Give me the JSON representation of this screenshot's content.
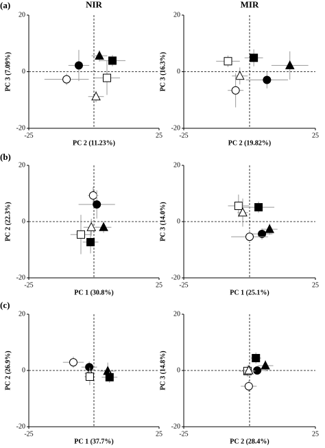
{
  "column_titles": [
    "NIR",
    "MIR"
  ],
  "panel_labels": [
    "(a)",
    "(b)",
    "(c)"
  ],
  "chart_data": [
    {
      "type": "scatter",
      "xlabel": "PC 2 (11.23%)",
      "ylabel": "PC 3 (7.09%)",
      "xlim": [
        -25,
        25
      ],
      "ylim": [
        -20,
        20
      ],
      "xticks": [
        -25,
        25
      ],
      "yticks": [
        -20,
        0,
        20
      ],
      "series": [
        {
          "marker": "circle",
          "filled": true,
          "x": [
            -5.8
          ],
          "values": [
            2.2
          ],
          "xerr": [
            4
          ],
          "yerr": [
            5.5
          ]
        },
        {
          "marker": "triangle",
          "filled": true,
          "x": [
            2.1
          ],
          "values": [
            5.6
          ],
          "xerr": [
            3
          ],
          "yerr": [
            2
          ]
        },
        {
          "marker": "square",
          "filled": true,
          "x": [
            7.1
          ],
          "values": [
            3.9
          ],
          "xerr": [
            5
          ],
          "yerr": [
            2
          ]
        },
        {
          "marker": "circle",
          "filled": false,
          "x": [
            -10.5
          ],
          "values": [
            -2.7
          ],
          "xerr": [
            8.5
          ],
          "yerr": [
            2
          ]
        },
        {
          "marker": "square",
          "filled": false,
          "x": [
            5
          ],
          "values": [
            -2.2
          ],
          "xerr": [
            5
          ],
          "yerr": [
            6
          ]
        },
        {
          "marker": "triangle",
          "filled": false,
          "x": [
            0.8
          ],
          "values": [
            -8.8
          ],
          "xerr": [
            3
          ],
          "yerr": [
            2
          ]
        }
      ]
    },
    {
      "type": "scatter",
      "xlabel": "PC 2 (19.82%)",
      "ylabel": "PC 3 (16.3%)",
      "xlim": [
        -25,
        25
      ],
      "ylim": [
        -20,
        20
      ],
      "xticks": [
        -25,
        25
      ],
      "yticks": [
        -20,
        0,
        20
      ],
      "series": [
        {
          "marker": "square",
          "filled": false,
          "x": [
            -8.2
          ],
          "values": [
            3.7
          ],
          "xerr": [
            4.5
          ],
          "yerr": [
            2
          ]
        },
        {
          "marker": "square",
          "filled": true,
          "x": [
            1.6
          ],
          "values": [
            4.9
          ],
          "xerr": [
            3.5
          ],
          "yerr": [
            3
          ]
        },
        {
          "marker": "triangle",
          "filled": true,
          "x": [
            15.3
          ],
          "values": [
            2.2
          ],
          "xerr": [
            7
          ],
          "yerr": [
            5
          ]
        },
        {
          "marker": "triangle",
          "filled": false,
          "x": [
            -3.7
          ],
          "values": [
            -1.5
          ],
          "xerr": [
            3
          ],
          "yerr": [
            3
          ]
        },
        {
          "marker": "circle",
          "filled": true,
          "x": [
            6.6
          ],
          "values": [
            -2.9
          ],
          "xerr": [
            8
          ],
          "yerr": [
            3
          ]
        },
        {
          "marker": "circle",
          "filled": false,
          "x": [
            -5.3
          ],
          "values": [
            -6.6
          ],
          "xerr": [
            3
          ],
          "yerr": [
            6
          ]
        }
      ]
    },
    {
      "type": "scatter",
      "xlabel": "PC 1 (30.8%)",
      "ylabel": "PC 2 (22.3%)",
      "xlim": [
        -25,
        25
      ],
      "ylim": [
        -20,
        20
      ],
      "xticks": [
        -25,
        25
      ],
      "yticks": [
        -20,
        0,
        20
      ],
      "series": [
        {
          "marker": "circle",
          "filled": false,
          "x": [
            -0.3
          ],
          "values": [
            9.3
          ],
          "xerr": [
            2
          ],
          "yerr": [
            3
          ]
        },
        {
          "marker": "circle",
          "filled": true,
          "x": [
            1.1
          ],
          "values": [
            6.1
          ],
          "xerr": [
            7
          ],
          "yerr": [
            5
          ]
        },
        {
          "marker": "triangle",
          "filled": false,
          "x": [
            -1
          ],
          "values": [
            -2
          ],
          "xerr": [
            3
          ],
          "yerr": [
            3
          ]
        },
        {
          "marker": "triangle",
          "filled": true,
          "x": [
            3.7
          ],
          "values": [
            -2
          ],
          "xerr": [
            3
          ],
          "yerr": [
            2
          ]
        },
        {
          "marker": "square",
          "filled": false,
          "x": [
            -5
          ],
          "values": [
            -4.6
          ],
          "xerr": [
            4
          ],
          "yerr": [
            7
          ]
        },
        {
          "marker": "square",
          "filled": true,
          "x": [
            -1.3
          ],
          "values": [
            -7.3
          ],
          "xerr": [
            3
          ],
          "yerr": [
            4
          ]
        }
      ]
    },
    {
      "type": "scatter",
      "xlabel": "PC 1 (25.1%)",
      "ylabel": "PC 3 (14.0%)",
      "xlim": [
        -25,
        25
      ],
      "ylim": [
        -20,
        20
      ],
      "xticks": [
        -25,
        25
      ],
      "yticks": [
        -20,
        0,
        20
      ],
      "series": [
        {
          "marker": "square",
          "filled": false,
          "x": [
            -4.2
          ],
          "values": [
            5.6
          ],
          "xerr": [
            4
          ],
          "yerr": [
            4
          ]
        },
        {
          "marker": "square",
          "filled": true,
          "x": [
            3.4
          ],
          "values": [
            5.1
          ],
          "xerr": [
            6
          ],
          "yerr": [
            2
          ]
        },
        {
          "marker": "triangle",
          "filled": false,
          "x": [
            -2.6
          ],
          "values": [
            3.2
          ],
          "xerr": [
            2
          ],
          "yerr": [
            5
          ]
        },
        {
          "marker": "triangle",
          "filled": true,
          "x": [
            7.6
          ],
          "values": [
            -2.7
          ],
          "xerr": [
            3
          ],
          "yerr": [
            2
          ]
        },
        {
          "marker": "circle",
          "filled": true,
          "x": [
            4.7
          ],
          "values": [
            -4.4
          ],
          "xerr": [
            4
          ],
          "yerr": [
            2
          ]
        },
        {
          "marker": "circle",
          "filled": false,
          "x": [
            0
          ],
          "values": [
            -5.4
          ],
          "xerr": [
            7
          ],
          "yerr": [
            2
          ]
        }
      ]
    },
    {
      "type": "scatter",
      "xlabel": "PC 1 (37.7%)",
      "ylabel": "PC 2 (26.9%)",
      "xlim": [
        -25,
        25
      ],
      "ylim": [
        -20,
        20
      ],
      "xticks": [
        -25,
        25
      ],
      "yticks": [
        -20,
        0,
        20
      ],
      "series": [
        {
          "marker": "circle",
          "filled": false,
          "x": [
            -7.9
          ],
          "values": [
            2.9
          ],
          "xerr": [
            4
          ],
          "yerr": [
            2
          ]
        },
        {
          "marker": "circle",
          "filled": true,
          "x": [
            -1.8
          ],
          "values": [
            1.2
          ],
          "xerr": [
            3
          ],
          "yerr": [
            2
          ]
        },
        {
          "marker": "triangle",
          "filled": false,
          "x": [
            -1.6
          ],
          "values": [
            -1
          ],
          "xerr": [
            2
          ],
          "yerr": [
            2
          ]
        },
        {
          "marker": "square",
          "filled": false,
          "x": [
            -1.6
          ],
          "values": [
            -2.2
          ],
          "xerr": [
            2
          ],
          "yerr": [
            3
          ]
        },
        {
          "marker": "triangle",
          "filled": true,
          "x": [
            5.3
          ],
          "values": [
            -0.2
          ],
          "xerr": [
            3
          ],
          "yerr": [
            3
          ]
        },
        {
          "marker": "square",
          "filled": true,
          "x": [
            6
          ],
          "values": [
            -2.4
          ],
          "xerr": [
            3
          ],
          "yerr": [
            2
          ]
        }
      ]
    },
    {
      "type": "scatter",
      "xlabel": "PC 2 (28.4%)",
      "ylabel": "PC 3 (14.8%)",
      "xlim": [
        -25,
        25
      ],
      "ylim": [
        -20,
        20
      ],
      "xticks": [
        -25,
        25
      ],
      "yticks": [
        -20,
        0,
        20
      ],
      "series": [
        {
          "marker": "square",
          "filled": true,
          "x": [
            2.4
          ],
          "values": [
            4.4
          ],
          "xerr": [
            2
          ],
          "yerr": [
            2
          ]
        },
        {
          "marker": "triangle",
          "filled": true,
          "x": [
            6
          ],
          "values": [
            1.7
          ],
          "xerr": [
            3
          ],
          "yerr": [
            2
          ]
        },
        {
          "marker": "circle",
          "filled": true,
          "x": [
            2.9
          ],
          "values": [
            0
          ],
          "xerr": [
            3
          ],
          "yerr": [
            1
          ]
        },
        {
          "marker": "square",
          "filled": false,
          "x": [
            -0.8
          ],
          "values": [
            -0.2
          ],
          "xerr": [
            3
          ],
          "yerr": [
            2
          ]
        },
        {
          "marker": "triangle",
          "filled": false,
          "x": [
            -0.3
          ],
          "values": [
            0
          ],
          "xerr": [
            2
          ],
          "yerr": [
            2
          ]
        },
        {
          "marker": "circle",
          "filled": false,
          "x": [
            -0.3
          ],
          "values": [
            -5.6
          ],
          "xerr": [
            3
          ],
          "yerr": [
            2
          ]
        }
      ]
    }
  ]
}
